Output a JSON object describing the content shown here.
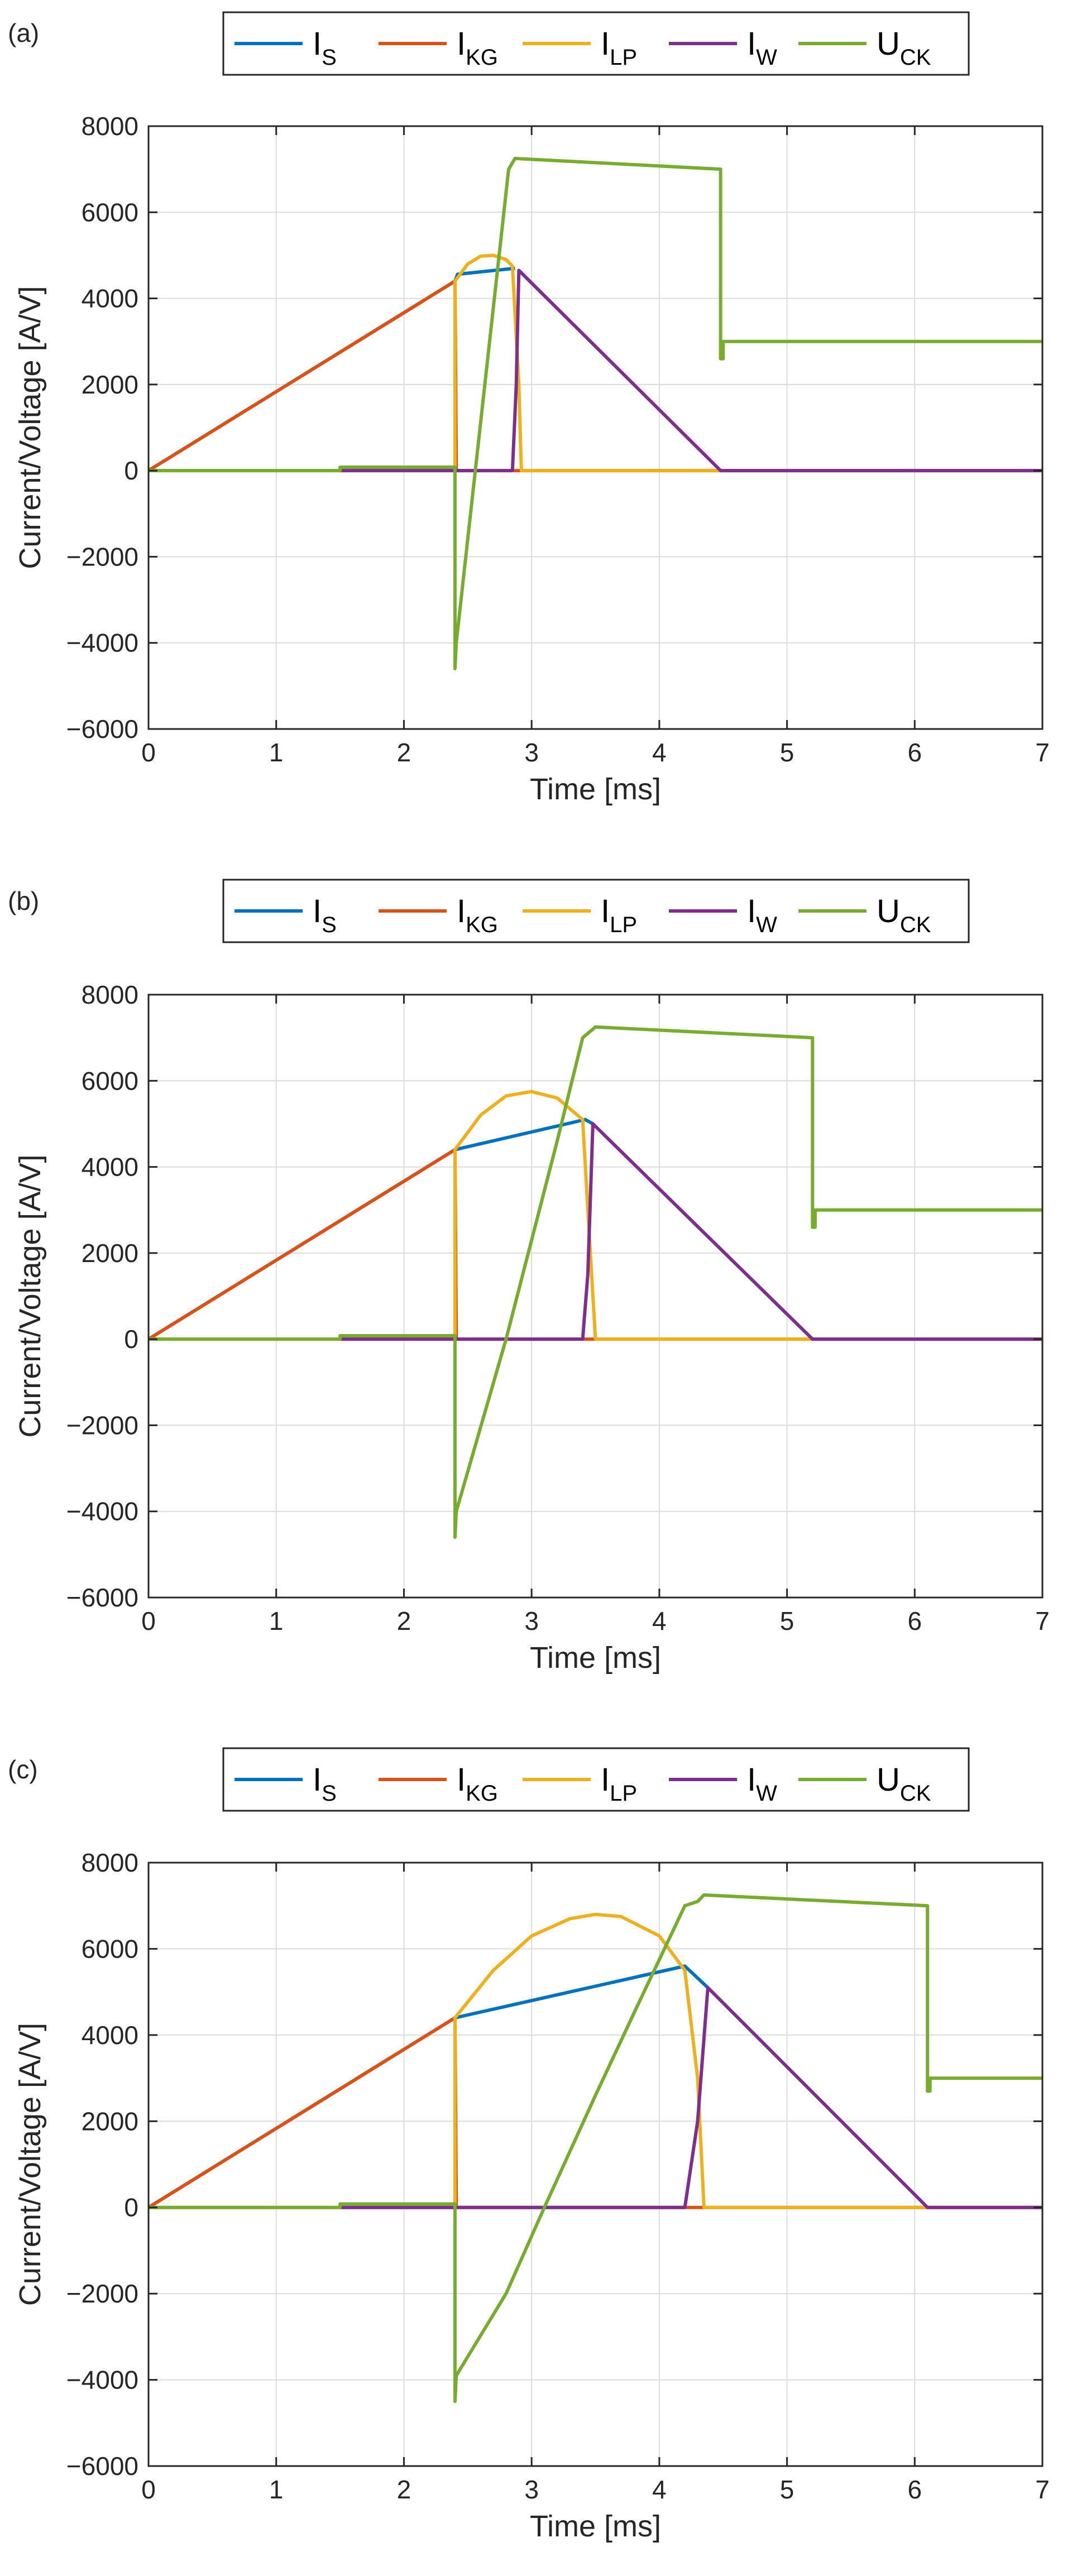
{
  "chart_data": [
    {
      "type": "line",
      "panel_label": "(a)",
      "xlabel": "Time [ms]",
      "ylabel": "Current/Voltage [A/V]",
      "xlim": [
        0,
        7
      ],
      "ylim": [
        -6000,
        8000
      ],
      "xticks": [
        0,
        1,
        2,
        3,
        4,
        5,
        6,
        7
      ],
      "yticks": [
        -6000,
        -4000,
        -2000,
        0,
        2000,
        4000,
        6000,
        8000
      ],
      "xtick_labels": [
        "0",
        "1",
        "2",
        "3",
        "4",
        "5",
        "6",
        "7"
      ],
      "ytick_labels": [
        "−6000",
        "−4000",
        "−2000",
        "0",
        "2000",
        "4000",
        "6000",
        "8000"
      ],
      "grid": true,
      "legend_position": "top-outside",
      "series": [
        {
          "name": "I_S",
          "label_main": "I",
          "label_sub": "S",
          "color": "#0072BD",
          "x": [
            0,
            2.4,
            2.42,
            2.87
          ],
          "y": [
            0,
            4400,
            4560,
            4700
          ]
        },
        {
          "name": "I_KG",
          "label_main": "I",
          "label_sub": "KG",
          "color": "#D95319",
          "x": [
            0,
            2.4,
            2.41,
            7
          ],
          "y": [
            0,
            4400,
            0,
            0
          ]
        },
        {
          "name": "I_LP",
          "label_main": "I",
          "label_sub": "LP",
          "color": "#EDB120",
          "x": [
            0,
            2.4,
            2.4,
            2.5,
            2.6,
            2.7,
            2.8,
            2.85,
            2.9,
            2.92,
            7
          ],
          "y": [
            0,
            0,
            4400,
            4800,
            4980,
            5000,
            4900,
            4750,
            2000,
            0,
            0
          ]
        },
        {
          "name": "I_W",
          "label_main": "I",
          "label_sub": "W",
          "color": "#7E2F8E",
          "x": [
            1.5,
            2.85,
            2.88,
            2.9,
            4.48,
            7
          ],
          "y": [
            0,
            0,
            2000,
            4650,
            0,
            0
          ]
        },
        {
          "name": "U_CK",
          "label_main": "U",
          "label_sub": "CK",
          "color": "#77AC30",
          "x": [
            0,
            1.5,
            1.5,
            2.4,
            2.4,
            2.41,
            2.82,
            2.87,
            4.48,
            4.48,
            4.5,
            4.5,
            7
          ],
          "y": [
            0,
            0,
            80,
            80,
            -4600,
            -4000,
            7000,
            7250,
            7000,
            2600,
            2600,
            3000,
            3000
          ]
        }
      ]
    },
    {
      "type": "line",
      "panel_label": "(b)",
      "xlabel": "Time [ms]",
      "ylabel": "Current/Voltage [A/V]",
      "xlim": [
        0,
        7
      ],
      "ylim": [
        -6000,
        8000
      ],
      "xticks": [
        0,
        1,
        2,
        3,
        4,
        5,
        6,
        7
      ],
      "yticks": [
        -6000,
        -4000,
        -2000,
        0,
        2000,
        4000,
        6000,
        8000
      ],
      "xtick_labels": [
        "0",
        "1",
        "2",
        "3",
        "4",
        "5",
        "6",
        "7"
      ],
      "ytick_labels": [
        "−6000",
        "−4000",
        "−2000",
        "0",
        "2000",
        "4000",
        "6000",
        "8000"
      ],
      "grid": true,
      "legend_position": "top-outside",
      "series": [
        {
          "name": "I_S",
          "label_main": "I",
          "label_sub": "S",
          "color": "#0072BD",
          "x": [
            0,
            2.4,
            3.42,
            3.48
          ],
          "y": [
            0,
            4400,
            5100,
            5000
          ]
        },
        {
          "name": "I_KG",
          "label_main": "I",
          "label_sub": "KG",
          "color": "#D95319",
          "x": [
            0,
            2.4,
            2.41,
            7
          ],
          "y": [
            0,
            4400,
            0,
            0
          ]
        },
        {
          "name": "I_LP",
          "label_main": "I",
          "label_sub": "LP",
          "color": "#EDB120",
          "x": [
            0,
            2.4,
            2.4,
            2.6,
            2.8,
            3.0,
            3.2,
            3.4,
            3.45,
            3.5,
            7
          ],
          "y": [
            0,
            0,
            4400,
            5200,
            5650,
            5750,
            5600,
            5100,
            2500,
            0,
            0
          ]
        },
        {
          "name": "I_W",
          "label_main": "I",
          "label_sub": "W",
          "color": "#7E2F8E",
          "x": [
            1.5,
            3.4,
            3.44,
            3.48,
            5.2,
            7
          ],
          "y": [
            0,
            0,
            1500,
            5000,
            0,
            0
          ]
        },
        {
          "name": "U_CK",
          "label_main": "U",
          "label_sub": "CK",
          "color": "#77AC30",
          "x": [
            0,
            1.5,
            1.5,
            2.4,
            2.4,
            2.41,
            2.8,
            3.2,
            3.4,
            3.5,
            5.2,
            5.2,
            5.22,
            5.22,
            7
          ],
          "y": [
            0,
            0,
            80,
            80,
            -4600,
            -4000,
            0,
            4600,
            7000,
            7250,
            7000,
            2600,
            2600,
            3000,
            3000
          ]
        }
      ]
    },
    {
      "type": "line",
      "panel_label": "(c)",
      "xlabel": "Time [ms]",
      "ylabel": "Current/Voltage [A/V]",
      "xlim": [
        0,
        7
      ],
      "ylim": [
        -6000,
        8000
      ],
      "xticks": [
        0,
        1,
        2,
        3,
        4,
        5,
        6,
        7
      ],
      "yticks": [
        -6000,
        -4000,
        -2000,
        0,
        2000,
        4000,
        6000,
        8000
      ],
      "xtick_labels": [
        "0",
        "1",
        "2",
        "3",
        "4",
        "5",
        "6",
        "7"
      ],
      "ytick_labels": [
        "−6000",
        "−4000",
        "−2000",
        "0",
        "2000",
        "4000",
        "6000",
        "8000"
      ],
      "grid": true,
      "legend_position": "top-outside",
      "series": [
        {
          "name": "I_S",
          "label_main": "I",
          "label_sub": "S",
          "color": "#0072BD",
          "x": [
            0,
            2.4,
            4.2,
            4.38
          ],
          "y": [
            0,
            4400,
            5600,
            5100
          ]
        },
        {
          "name": "I_KG",
          "label_main": "I",
          "label_sub": "KG",
          "color": "#D95319",
          "x": [
            0,
            2.4,
            2.41,
            7
          ],
          "y": [
            0,
            4400,
            0,
            0
          ]
        },
        {
          "name": "I_LP",
          "label_main": "I",
          "label_sub": "LP",
          "color": "#EDB120",
          "x": [
            0,
            2.4,
            2.4,
            2.7,
            3.0,
            3.3,
            3.5,
            3.7,
            4.0,
            4.2,
            4.3,
            4.35,
            7
          ],
          "y": [
            0,
            0,
            4400,
            5500,
            6300,
            6700,
            6800,
            6750,
            6300,
            5500,
            3000,
            0,
            0
          ]
        },
        {
          "name": "I_W",
          "label_main": "I",
          "label_sub": "W",
          "color": "#7E2F8E",
          "x": [
            1.5,
            4.2,
            4.3,
            4.38,
            6.1,
            7
          ],
          "y": [
            0,
            0,
            2000,
            5100,
            0,
            0
          ]
        },
        {
          "name": "U_CK",
          "label_main": "U",
          "label_sub": "CK",
          "color": "#77AC30",
          "x": [
            0,
            1.5,
            1.5,
            2.4,
            2.4,
            2.41,
            2.8,
            3.1,
            3.5,
            3.8,
            4.2,
            4.3,
            4.35,
            6.1,
            6.1,
            6.12,
            6.12,
            7
          ],
          "y": [
            0,
            0,
            80,
            80,
            -4500,
            -3900,
            -2000,
            0,
            2600,
            4500,
            7000,
            7100,
            7250,
            7000,
            2700,
            2700,
            3000,
            3000
          ]
        }
      ]
    }
  ]
}
